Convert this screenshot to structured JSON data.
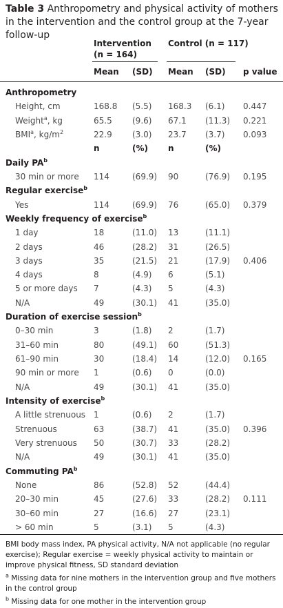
{
  "title": {
    "label": "Table 3",
    "text": "Anthropometry and physical activity of mothers in the intervention and the control group at the 7-year follow-up"
  },
  "header": {
    "group1": [
      "Intervention",
      "(n = 164)"
    ],
    "group2": "Control (n = 117)",
    "columns": [
      "Mean",
      "(SD)",
      "Mean",
      "(SD)",
      "p value"
    ]
  },
  "rows": [
    {
      "section": [
        "Anthropometry"
      ]
    },
    {
      "label": [
        "Height, cm"
      ],
      "cells": [
        "168.8",
        "(5.5)",
        "168.3",
        "(6.1)"
      ],
      "p": "0.447"
    },
    {
      "label": [
        "Weight",
        "a",
        ", kg"
      ],
      "cells": [
        "65.5",
        "(9.6)",
        "67.1",
        "(11.3)"
      ],
      "p": "0.221"
    },
    {
      "label": [
        "BMI",
        "a",
        ", kg/m",
        "2"
      ],
      "cells": [
        "22.9",
        "(3.0)",
        "23.7",
        "(3.7)"
      ],
      "p": "0.093"
    },
    {
      "subheader": [
        "n",
        "(%)",
        "n",
        "(%)"
      ]
    },
    {
      "section": [
        "Daily PA",
        "b"
      ]
    },
    {
      "label": [
        "30 min or more"
      ],
      "cells": [
        "114",
        "(69.9)",
        "90",
        "(76.9)"
      ],
      "p": "0.195"
    },
    {
      "section": [
        "Regular exercise",
        "b"
      ]
    },
    {
      "label": [
        "Yes"
      ],
      "cells": [
        "114",
        "(69.9)",
        "76",
        "(65.0)"
      ],
      "p": "0.379"
    },
    {
      "section": [
        "Weekly frequency of exercise",
        "b"
      ]
    },
    {
      "label": [
        "1 day"
      ],
      "cells": [
        "18",
        "(11.0)",
        "13",
        "(11.1)"
      ]
    },
    {
      "label": [
        "2 days"
      ],
      "cells": [
        "46",
        "(28.2)",
        "31",
        "(26.5)"
      ]
    },
    {
      "label": [
        "3 days"
      ],
      "cells": [
        "35",
        "(21.5)",
        "21",
        "(17.9)"
      ],
      "p": "0.406"
    },
    {
      "label": [
        "4 days"
      ],
      "cells": [
        "8",
        "(4.9)",
        "6",
        "(5.1)"
      ]
    },
    {
      "label": [
        "5 or more days"
      ],
      "cells": [
        "7",
        "(4.3)",
        "5",
        "(4.3)"
      ]
    },
    {
      "label": [
        "N/A"
      ],
      "cells": [
        "49",
        "(30.1)",
        "41",
        "(35.0)"
      ]
    },
    {
      "section": [
        "Duration of exercise session",
        "b"
      ]
    },
    {
      "label": [
        "0–30 min"
      ],
      "cells": [
        "3",
        "(1.8)",
        "2",
        "(1.7)"
      ]
    },
    {
      "label": [
        "31–60 min"
      ],
      "cells": [
        "80",
        "(49.1)",
        "60",
        "(51.3)"
      ]
    },
    {
      "label": [
        "61–90 min"
      ],
      "cells": [
        "30",
        "(18.4)",
        "14",
        "(12.0)"
      ],
      "p": "0.165"
    },
    {
      "label": [
        "90 min or more"
      ],
      "cells": [
        "1",
        "(0.6)",
        "0",
        "(0.0)"
      ]
    },
    {
      "label": [
        "N/A"
      ],
      "cells": [
        "49",
        "(30.1)",
        "41",
        "(35.0)"
      ]
    },
    {
      "section": [
        "Intensity of exercise",
        "b"
      ]
    },
    {
      "label": [
        "A little strenuous"
      ],
      "cells": [
        "1",
        "(0.6)",
        "2",
        "(1.7)"
      ]
    },
    {
      "label": [
        "Strenuous"
      ],
      "cells": [
        "63",
        "(38.7)",
        "41",
        "(35.0)"
      ],
      "p": "0.396"
    },
    {
      "label": [
        "Very strenuous"
      ],
      "cells": [
        "50",
        "(30.7)",
        "33",
        "(28.2)"
      ]
    },
    {
      "label": [
        "N/A"
      ],
      "cells": [
        "49",
        "(30.1)",
        "41",
        "(35.0)"
      ]
    },
    {
      "section": [
        "Commuting PA",
        "b"
      ]
    },
    {
      "label": [
        "None"
      ],
      "cells": [
        "86",
        "(52.8)",
        "52",
        "(44.4)"
      ]
    },
    {
      "label": [
        "20–30 min"
      ],
      "cells": [
        "45",
        "(27.6)",
        "33",
        "(28.2)"
      ],
      "p": "0.111"
    },
    {
      "label": [
        "30–60 min"
      ],
      "cells": [
        "27",
        "(16.6)",
        "27",
        "(23.1)"
      ]
    },
    {
      "label": [
        "> 60 min"
      ],
      "cells": [
        "5",
        "(3.1)",
        "5",
        "(4.3)"
      ]
    }
  ],
  "footnotes": [
    [
      "BMI body mass index, PA physical activity, N/A not applicable (no regular exercise); Regular exercise = weekly physical activity to maintain or improve physical fitness, SD standard deviation"
    ],
    [
      "",
      "a",
      " Missing data for nine mothers in the intervention group and five mothers in the control group"
    ],
    [
      "",
      "b",
      " Missing data for one mother in the intervention group"
    ]
  ]
}
